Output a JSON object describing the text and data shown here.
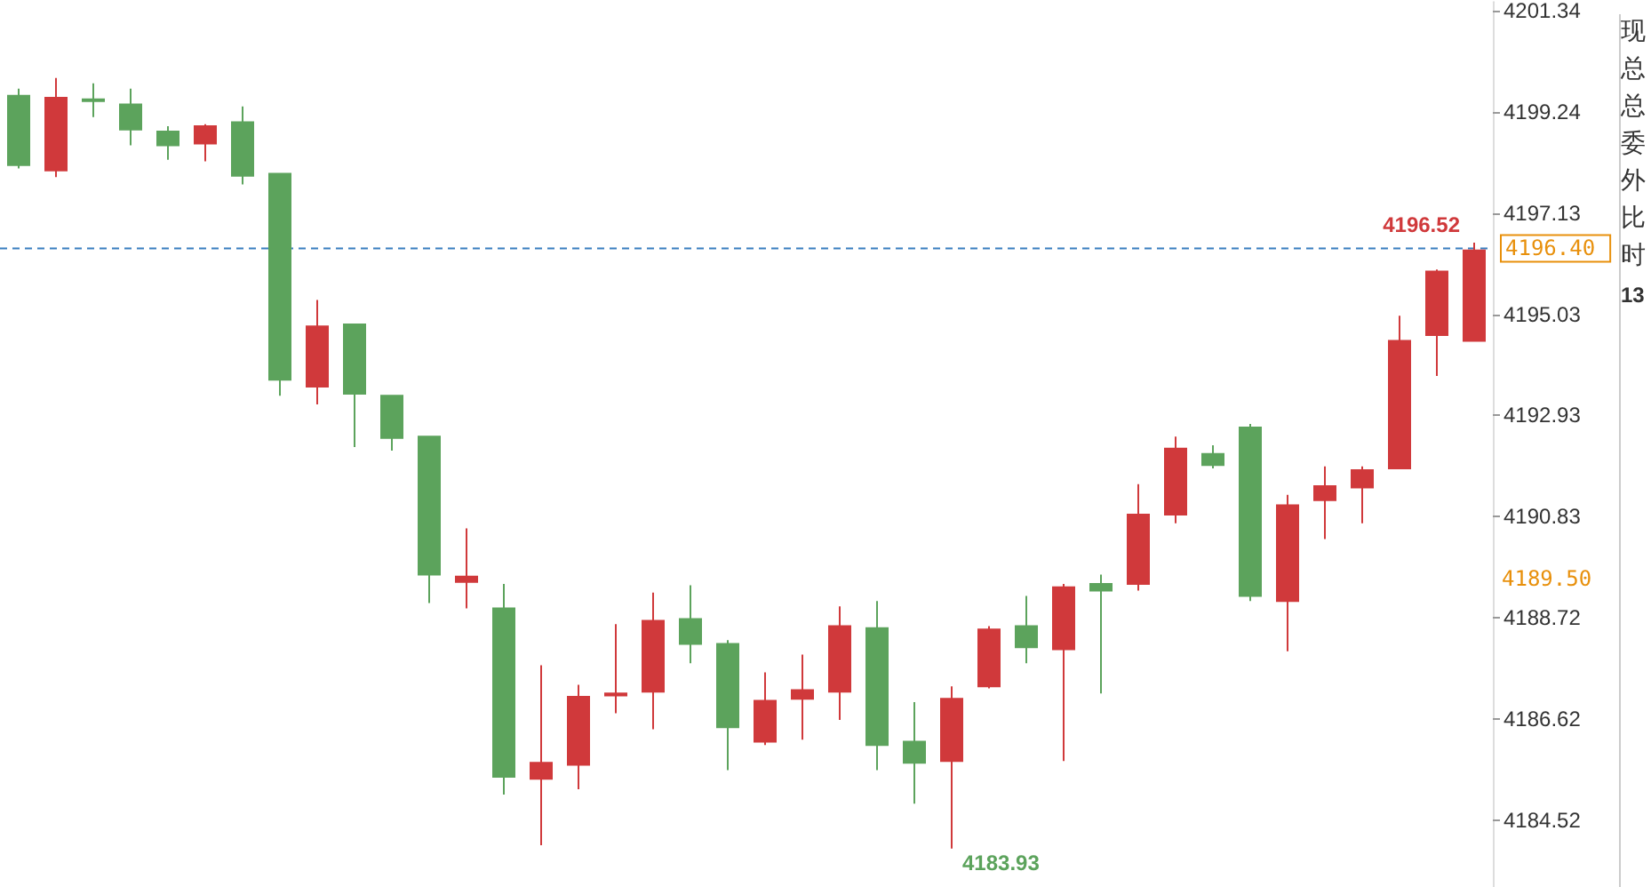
{
  "chart_data": {
    "type": "candlestick",
    "categories": [
      null,
      null,
      null,
      null,
      null,
      null,
      null,
      null,
      null,
      null,
      null,
      null,
      null,
      null,
      null,
      null,
      null,
      null,
      null,
      null,
      null,
      null,
      null,
      null,
      null,
      null,
      null,
      null,
      null,
      null,
      null,
      null,
      null,
      null,
      null,
      null,
      null,
      null,
      null,
      null
    ],
    "ohlc": [
      [
        4199.57,
        4199.72,
        4198.06,
        4198.13
      ],
      [
        4198.02,
        4199.94,
        4197.88,
        4199.53
      ],
      [
        4199.5,
        4199.83,
        4199.13,
        4199.46
      ],
      [
        4199.39,
        4199.72,
        4198.54,
        4198.87
      ],
      [
        4198.83,
        4198.94,
        4198.24,
        4198.54
      ],
      [
        4198.58,
        4198.98,
        4198.21,
        4198.94
      ],
      [
        4199.02,
        4199.35,
        4197.73,
        4197.91
      ],
      [
        4197.95,
        4197.95,
        4193.34,
        4193.67
      ],
      [
        4193.53,
        4195.33,
        4193.16,
        4194.78
      ],
      [
        4194.82,
        4194.82,
        4192.27,
        4193.38
      ],
      [
        4193.34,
        4193.34,
        4192.2,
        4192.46
      ],
      [
        4192.49,
        4192.49,
        4189.03,
        4189.62
      ],
      [
        4189.47,
        4190.58,
        4188.92,
        4189.58
      ],
      [
        4188.92,
        4189.43,
        4185.05,
        4185.42
      ],
      [
        4185.38,
        4187.74,
        4184.0,
        4185.71
      ],
      [
        4185.67,
        4187.33,
        4185.16,
        4187.08
      ],
      [
        4187.11,
        4188.59,
        4186.74,
        4187.15
      ],
      [
        4187.19,
        4189.25,
        4186.41,
        4188.66
      ],
      [
        4188.7,
        4189.4,
        4187.78,
        4188.18
      ],
      [
        4188.18,
        4188.26,
        4185.56,
        4186.45
      ],
      [
        4186.15,
        4187.59,
        4186.08,
        4187.0
      ],
      [
        4187.04,
        4187.96,
        4186.19,
        4187.22
      ],
      [
        4187.19,
        4188.96,
        4186.6,
        4188.55
      ],
      [
        4188.51,
        4189.07,
        4185.56,
        4186.08
      ],
      [
        4186.15,
        4186.97,
        4184.86,
        4185.71
      ],
      [
        4185.75,
        4187.3,
        4183.93,
        4187.04
      ],
      [
        4187.3,
        4188.55,
        4187.26,
        4188.48
      ],
      [
        4188.55,
        4189.18,
        4187.78,
        4188.11
      ],
      [
        4188.07,
        4189.43,
        4185.75,
        4189.36
      ],
      [
        4189.43,
        4189.62,
        4187.15,
        4189.29
      ],
      [
        4189.43,
        4191.5,
        4189.29,
        4190.87
      ],
      [
        4190.87,
        4192.49,
        4190.69,
        4192.24
      ],
      [
        4192.13,
        4192.31,
        4191.83,
        4191.9
      ],
      [
        4192.68,
        4192.75,
        4189.07,
        4189.18
      ],
      [
        4189.07,
        4191.28,
        4188.03,
        4191.06
      ],
      [
        4191.17,
        4191.87,
        4190.36,
        4191.46
      ],
      [
        4191.43,
        4191.87,
        4190.69,
        4191.79
      ],
      [
        4191.83,
        4195.0,
        4191.83,
        4194.48
      ],
      [
        4194.6,
        4195.96,
        4193.75,
        4195.92
      ],
      [
        4194.48,
        4196.52,
        4194.48,
        4196.36
      ]
    ],
    "ylim": [
      4183.13,
      4201.52
    ],
    "yticks": [
      4201.34,
      4199.24,
      4197.13,
      4195.03,
      4192.93,
      4190.83,
      4188.72,
      4186.62,
      4184.52
    ],
    "ref_lines": [
      {
        "axis": "y",
        "value": 4196.4,
        "label": "4196.40",
        "color": "#3a7fc0",
        "line_style": "dashed"
      }
    ],
    "annotations": [
      "4196.52",
      "4183.93",
      "4189.50",
      "现",
      "总",
      "总",
      "委",
      "外",
      "比",
      "时",
      "13"
    ],
    "grid": false,
    "tick_labels": "y"
  }
}
